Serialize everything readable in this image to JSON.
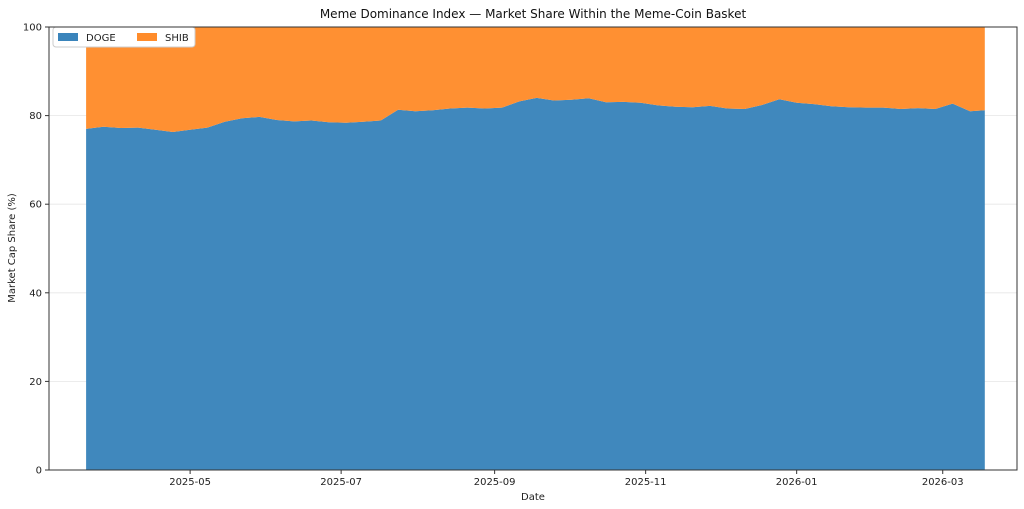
{
  "chart_data": {
    "type": "area",
    "stacked": true,
    "title": "Meme Dominance Index — Market Share Within the Meme-Coin Basket",
    "xlabel": "Date",
    "ylabel": "Market Cap Share (%)",
    "xlim": [
      "2025-03-05",
      "2026-03-31"
    ],
    "ylim": [
      0,
      100
    ],
    "x_ticks": [
      "2025-05",
      "2025-07",
      "2025-09",
      "2025-11",
      "2026-01",
      "2026-03"
    ],
    "y_ticks": [
      0,
      20,
      40,
      60,
      80,
      100
    ],
    "grid": true,
    "legend_position": "top-left",
    "colors": {
      "DOGE": "#3a84bb",
      "SHIB": "#ff8c2b"
    },
    "x": [
      "2025-03-20",
      "2025-03-27",
      "2025-04-03",
      "2025-04-10",
      "2025-04-17",
      "2025-04-24",
      "2025-05-01",
      "2025-05-08",
      "2025-05-15",
      "2025-05-22",
      "2025-05-29",
      "2025-06-05",
      "2025-06-12",
      "2025-06-19",
      "2025-06-26",
      "2025-07-03",
      "2025-07-10",
      "2025-07-17",
      "2025-07-24",
      "2025-07-31",
      "2025-08-07",
      "2025-08-14",
      "2025-08-21",
      "2025-08-28",
      "2025-09-04",
      "2025-09-11",
      "2025-09-18",
      "2025-09-25",
      "2025-10-02",
      "2025-10-09",
      "2025-10-16",
      "2025-10-23",
      "2025-10-30",
      "2025-11-06",
      "2025-11-13",
      "2025-11-20",
      "2025-11-27",
      "2025-12-04",
      "2025-12-11",
      "2025-12-18",
      "2025-12-25",
      "2026-01-01",
      "2026-01-08",
      "2026-01-15",
      "2026-01-22",
      "2026-01-29",
      "2026-02-05",
      "2026-02-12",
      "2026-02-19",
      "2026-02-26",
      "2026-03-05",
      "2026-03-12",
      "2026-03-18"
    ],
    "series": [
      {
        "name": "DOGE",
        "values": [
          77.0,
          77.5,
          77.2,
          77.3,
          76.8,
          76.3,
          76.8,
          77.3,
          78.6,
          79.4,
          79.7,
          79.0,
          78.7,
          78.9,
          78.5,
          78.4,
          78.6,
          78.9,
          81.3,
          81.0,
          81.2,
          81.6,
          81.8,
          81.6,
          81.8,
          83.2,
          84.0,
          83.4,
          83.6,
          83.9,
          83.0,
          83.1,
          82.9,
          82.3,
          82.0,
          81.9,
          82.2,
          81.6,
          81.5,
          82.4,
          83.7,
          82.9,
          82.6,
          82.1,
          81.9,
          81.8,
          81.8,
          81.5,
          81.7,
          81.5,
          82.7,
          81.0,
          81.2
        ]
      },
      {
        "name": "SHIB",
        "values": [
          23.0,
          22.5,
          22.8,
          22.7,
          23.2,
          23.7,
          23.2,
          22.7,
          21.4,
          20.6,
          20.3,
          21.0,
          21.3,
          21.1,
          21.5,
          21.6,
          21.4,
          21.1,
          18.7,
          19.0,
          18.8,
          18.4,
          18.2,
          18.4,
          18.2,
          16.8,
          16.0,
          16.6,
          16.4,
          16.1,
          17.0,
          16.9,
          17.1,
          17.7,
          18.0,
          18.1,
          17.8,
          18.4,
          18.5,
          17.6,
          16.3,
          17.1,
          17.4,
          17.9,
          18.1,
          18.2,
          18.2,
          18.5,
          18.3,
          18.5,
          17.3,
          19.0,
          18.8
        ]
      }
    ]
  }
}
